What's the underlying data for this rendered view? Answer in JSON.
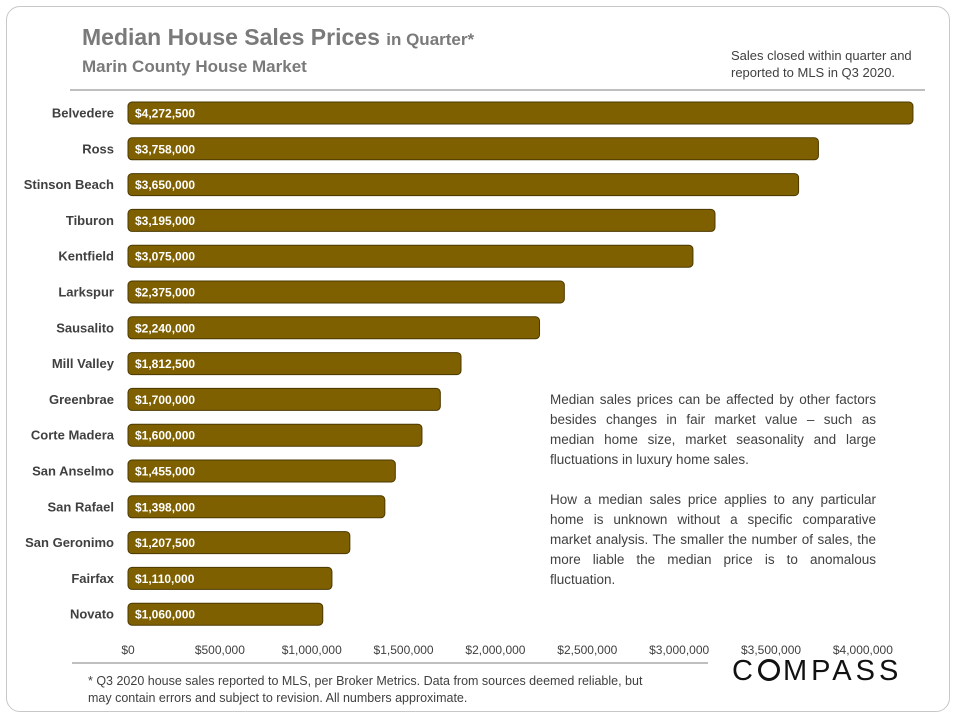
{
  "header": {
    "title": "Median House Sales Prices",
    "title_suffix": "in Quarter*",
    "subtitle": "Marin County House Market",
    "note": "Sales closed within quarter and reported to MLS in Q3 2020."
  },
  "annotation": {
    "p1": "Median sales prices can be affected by other factors besides changes in fair market value – such as median home size, market seasonality and large fluctuations in luxury home sales.",
    "p2": "How a median sales price applies to any particular home is unknown without a specific comparative market analysis. The smaller the number of sales, the more liable the median price is to anomalous fluctuation."
  },
  "footnote": "* Q3 2020 house sales reported to MLS, per Broker Metrics. Data from sources deemed reliable, but may contain errors and subject to revision. All numbers approximate.",
  "logo": {
    "text_before": "C",
    "text_after": "MPASS"
  },
  "colors": {
    "bar": "#7f6000",
    "bar_stroke": "#4a3800",
    "label": "#ffffff"
  },
  "chart_data": {
    "type": "bar",
    "orientation": "horizontal",
    "title": "Median House Sales Prices in Quarter*",
    "subtitle": "Marin County House Market",
    "categories": [
      "Belvedere",
      "Ross",
      "Stinson Beach",
      "Tiburon",
      "Kentfield",
      "Larkspur",
      "Sausalito",
      "Mill Valley",
      "Greenbrae",
      "Corte Madera",
      "San Anselmo",
      "San Rafael",
      "San Geronimo",
      "Fairfax",
      "Novato"
    ],
    "values": [
      4272500,
      3758000,
      3650000,
      3195000,
      3075000,
      2375000,
      2240000,
      1812500,
      1700000,
      1600000,
      1455000,
      1398000,
      1207500,
      1110000,
      1060000
    ],
    "value_labels": [
      "$4,272,500",
      "$3,758,000",
      "$3,650,000",
      "$3,195,000",
      "$3,075,000",
      "$2,375,000",
      "$2,240,000",
      "$1,812,500",
      "$1,700,000",
      "$1,600,000",
      "$1,455,000",
      "$1,398,000",
      "$1,207,500",
      "$1,110,000",
      "$1,060,000"
    ],
    "xlim": [
      0,
      4300000
    ],
    "xticks": [
      0,
      500000,
      1000000,
      1500000,
      2000000,
      2500000,
      3000000,
      3500000,
      4000000
    ],
    "xtick_labels": [
      "$0",
      "$500,000",
      "$1,000,000",
      "$1,500,000",
      "$2,000,000",
      "$2,500,000",
      "$3,000,000",
      "$3,500,000",
      "$4,000,000"
    ],
    "xlabel": "",
    "ylabel": "",
    "grid": false
  }
}
